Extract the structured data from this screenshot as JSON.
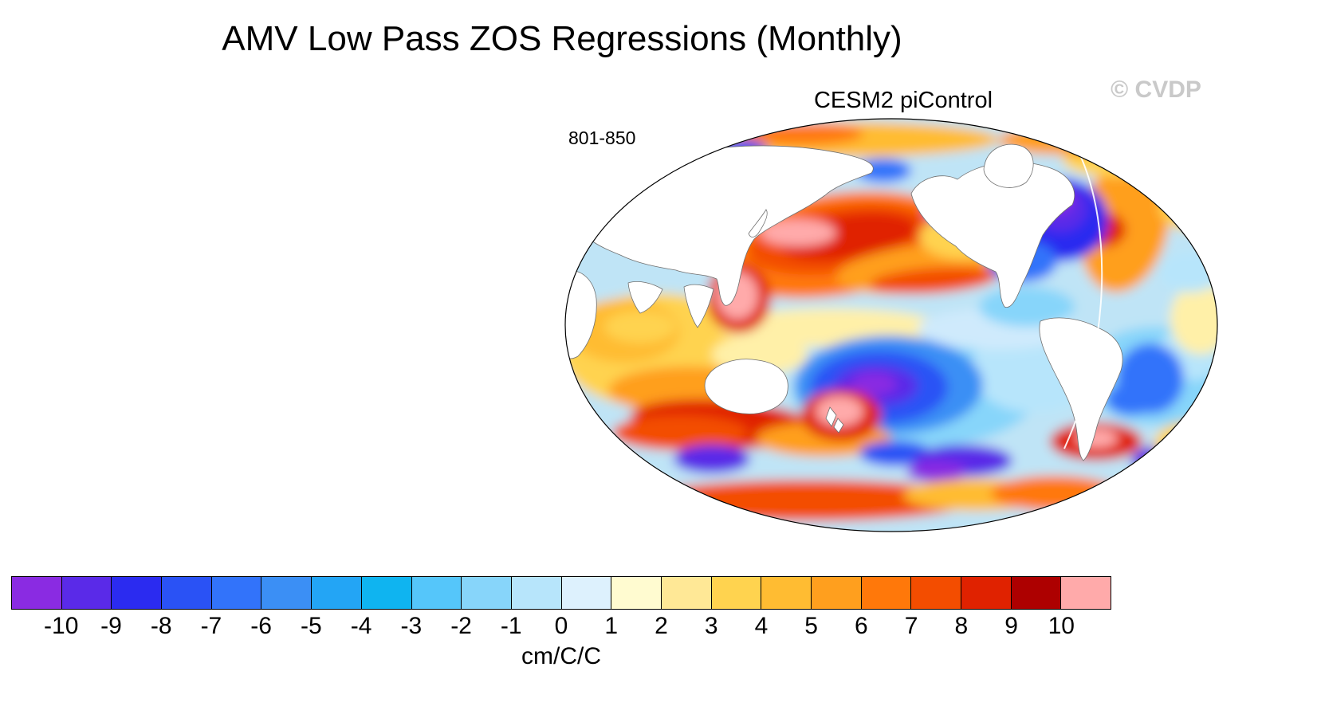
{
  "header": {
    "title": "AMV Low Pass ZOS Regressions (Monthly)",
    "watermark": "© CVDP"
  },
  "map": {
    "model_label": "CESM2 piControl",
    "period_label": "801-850"
  },
  "colorbar": {
    "units": "cm/C/C",
    "tick_labels": [
      "-10",
      "-9",
      "-8",
      "-7",
      "-6",
      "-5",
      "-4",
      "-3",
      "-2",
      "-1",
      "0",
      "1",
      "2",
      "3",
      "4",
      "5",
      "6",
      "7",
      "8",
      "9",
      "10"
    ],
    "colors": [
      "#8a2be2",
      "#5a2ae8",
      "#2b2bf0",
      "#2a52f5",
      "#3273fa",
      "#3b8ff5",
      "#23a5f5",
      "#0fb4f0",
      "#55c6fa",
      "#87d5fa",
      "#b7e5fb",
      "#ddf1fd",
      "#fffbd0",
      "#ffe896",
      "#ffd34f",
      "#ffbc32",
      "#ff9f1e",
      "#ff780a",
      "#f34d00",
      "#e02200",
      "#ad0000",
      "#ffaaaa"
    ]
  },
  "chart_data": {
    "type": "heatmap",
    "title": "AMV Low Pass ZOS Regressions (Monthly)",
    "dataset": "CESM2 piControl",
    "period": "801-850",
    "units": "cm/C/C",
    "projection": "global oval, Pacific-centered world map",
    "legend_position": "bottom",
    "colorbar_levels": [
      -10,
      -9,
      -8,
      -7,
      -6,
      -5,
      -4,
      -3,
      -2,
      -1,
      0,
      1,
      2,
      3,
      4,
      5,
      6,
      7,
      8,
      9,
      10
    ],
    "colorbar_colors": [
      "#8a2be2",
      "#5a2ae8",
      "#2b2bf0",
      "#2a52f5",
      "#3273fa",
      "#3b8ff5",
      "#23a5f5",
      "#0fb4f0",
      "#55c6fa",
      "#87d5fa",
      "#b7e5fb",
      "#ddf1fd",
      "#fffbd0",
      "#ffe896",
      "#ffd34f",
      "#ffbc32",
      "#ff9f1e",
      "#ff780a",
      "#f34d00",
      "#e02200",
      "#ad0000",
      "#ffaaaa"
    ],
    "notable_features": [
      "strong negative (blue/purple) center in subpolar North Atlantic ringed by positive (orange) values",
      "large positive (red/orange) region in western and central North Pacific with pink core",
      "negative (purple/blue) center in central South Pacific",
      "positive (red) band in Southern Ocean south of Australia with adjacent purple minima",
      "mixed warm values across Indian Ocean and Arctic rim"
    ]
  }
}
